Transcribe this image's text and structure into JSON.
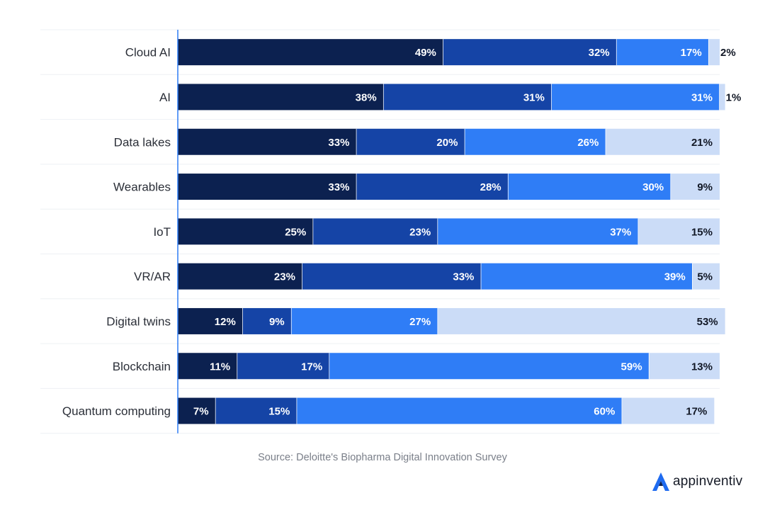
{
  "chart_data": {
    "type": "bar",
    "orientation": "horizontal",
    "stacked": true,
    "categories": [
      "Cloud AI",
      "AI",
      "Data lakes",
      "Wearables",
      "IoT",
      "VR/AR",
      "Digital twins",
      "Blockchain",
      "Quantum computing"
    ],
    "series": [
      {
        "name": "Series 1",
        "color": "#0c2150",
        "values": [
          49,
          38,
          33,
          33,
          25,
          23,
          12,
          11,
          7
        ]
      },
      {
        "name": "Series 2",
        "color": "#1544a6",
        "values": [
          32,
          31,
          20,
          28,
          23,
          33,
          9,
          17,
          15
        ]
      },
      {
        "name": "Series 3",
        "color": "#2f7df6",
        "values": [
          17,
          31,
          26,
          30,
          37,
          39,
          27,
          59,
          60
        ]
      },
      {
        "name": "Series 4",
        "color": "#cbdcf7",
        "values": [
          2,
          1,
          21,
          9,
          15,
          5,
          53,
          13,
          17
        ]
      }
    ],
    "value_suffix": "%",
    "xlim": [
      0,
      100
    ],
    "legend": "none"
  },
  "source_text": "Source: Deloitte's Biopharma Digital Innovation Survey",
  "brand": {
    "name": "appinventiv",
    "logo_icon": "appinventiv-logo-icon",
    "accent": "#1f6bf0"
  }
}
